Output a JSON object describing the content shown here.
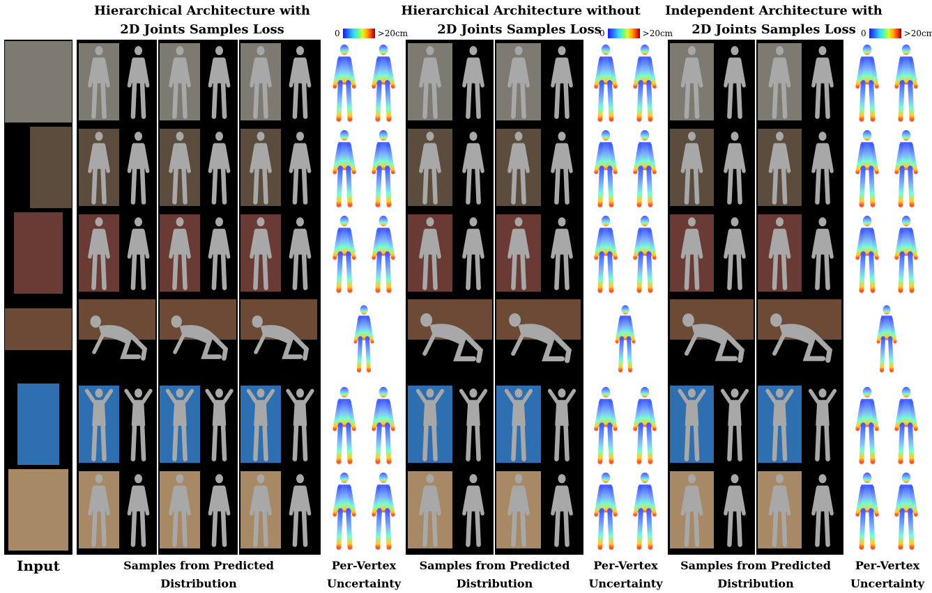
{
  "headers": {
    "a_line1": "Hierarchical Architecture with",
    "a_line2": "2D Joints Samples Loss",
    "b_line1": "Hierarchical Architecture without",
    "b_line2": "2D Joints Samples Loss",
    "c_line1": "Independent Architecture with",
    "c_line2": "2D Joints Samples Loss"
  },
  "colorbar": {
    "min_label": "0",
    "max_label": ">20cm"
  },
  "footer": {
    "input": "Input",
    "samples_a_line1": "Samples from Predicted",
    "samples_a_line2": "Distribution",
    "pv_a_line1": "Per-Vertex",
    "pv_a_line2": "Uncertainty",
    "samples_b_line1": "Samples from Predicted",
    "samples_b_line2": "Distribution",
    "pv_b_line1": "Per-Vertex",
    "pv_b_line2": "Uncertainty",
    "samples_c_line1": "Samples from Predicted",
    "samples_c_line2": "Distribution",
    "pv_c_line1": "Per-Vertex",
    "pv_c_line2": "Uncertainty"
  },
  "colors": {
    "background": "#ffffff",
    "panel": "#000000",
    "mesh": "#a8a8a8",
    "photo_tones": [
      "#7d7a72",
      "#5b4c3e",
      "#6a3b35",
      "#6c4a35",
      "#2d6fb0",
      "#a78966"
    ]
  }
}
